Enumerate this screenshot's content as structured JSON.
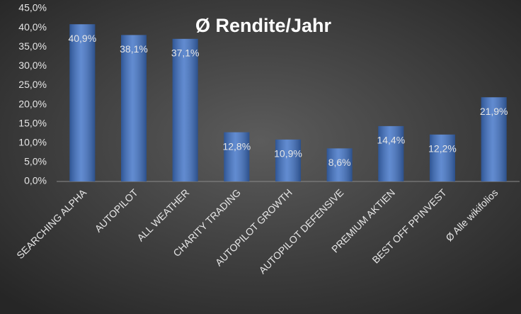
{
  "chart_data": {
    "type": "bar",
    "title": "Ø Rendite/Jahr",
    "categories": [
      "SEARCHING ALPHA",
      "AUTOPILOT",
      "ALL WEATHER",
      "CHARITY TRADING",
      "AUTOPILOT GROWTH",
      "AUTOPILOT DEFENSIVE",
      "PREMIUM AKTIEN",
      "BEST OFF PPINVEST",
      "Ø Alle wikifolios"
    ],
    "values": [
      40.9,
      38.1,
      37.1,
      12.8,
      10.9,
      8.6,
      14.4,
      12.2,
      21.9
    ],
    "value_labels": [
      "40,9%",
      "38,1%",
      "37,1%",
      "12,8%",
      "10,9%",
      "8,6%",
      "14,4%",
      "12,2%",
      "21,9%"
    ],
    "color": "#3f72c6",
    "ylim": [
      0,
      45
    ],
    "yticks": [
      {
        "value": 0,
        "label": "0,0%"
      },
      {
        "value": 5,
        "label": "5,0%"
      },
      {
        "value": 10,
        "label": "10,0%"
      },
      {
        "value": 15,
        "label": "15,0%"
      },
      {
        "value": 20,
        "label": "20,0%"
      },
      {
        "value": 25,
        "label": "25,0%"
      },
      {
        "value": 30,
        "label": "30,0%"
      },
      {
        "value": 35,
        "label": "35,0%"
      },
      {
        "value": 40,
        "label": "40,0%"
      },
      {
        "value": 45,
        "label": "45,0%"
      }
    ],
    "grid": false
  }
}
